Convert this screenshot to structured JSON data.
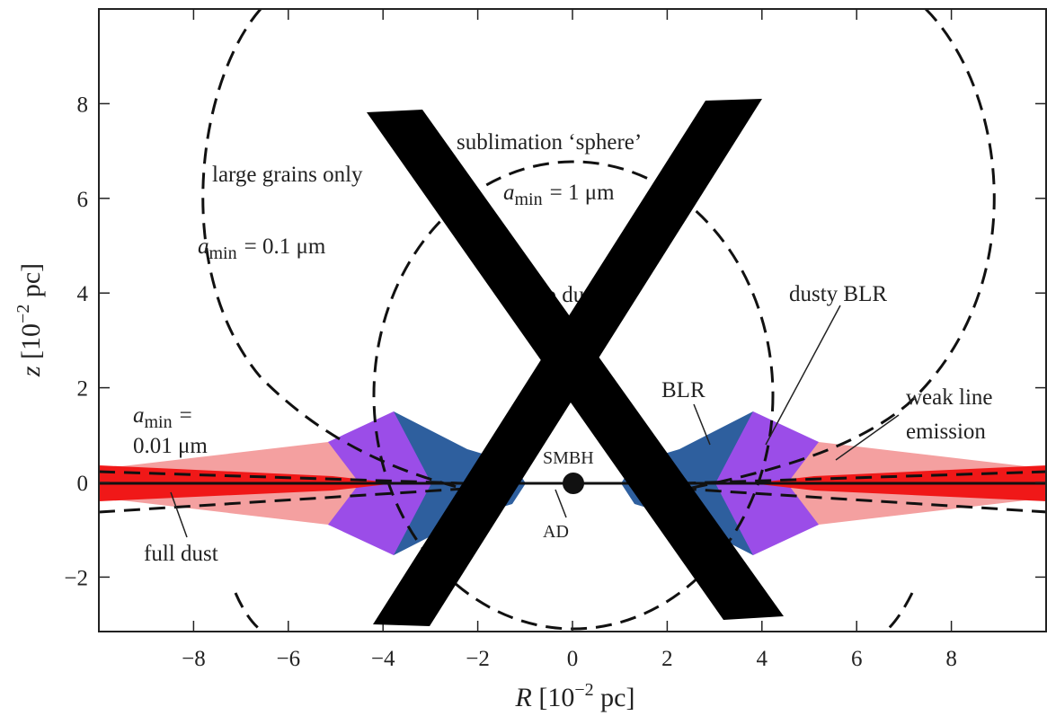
{
  "chart_data": {
    "type": "schematic",
    "xlabel": {
      "symbol": "R",
      "text": "[10",
      "superscript": "−2",
      "suffix": "pc]"
    },
    "ylabel": {
      "symbol": "z",
      "text": "[10",
      "superscript": "−2",
      "suffix": "pc]"
    },
    "xlim": [
      -10,
      10
    ],
    "ylim": [
      -3.15,
      10
    ],
    "xticks": [
      {
        "value": -8,
        "label": "−8"
      },
      {
        "value": -6,
        "label": "−6"
      },
      {
        "value": -4,
        "label": "−4"
      },
      {
        "value": -2,
        "label": "−2"
      },
      0,
      2,
      4,
      6,
      8
    ],
    "yticks": [
      {
        "value": -2,
        "label": "−2"
      },
      0,
      2,
      4,
      6,
      8
    ],
    "annotations": {
      "sublimation": "sublimation ‘sphere’",
      "large_grains": "large grains only",
      "amin_1": {
        "symbol": "a",
        "subscript": "min",
        "text": "= 1 μm"
      },
      "amin_01": {
        "symbol": "a",
        "subscript": "min",
        "text": "= 0.1 μm"
      },
      "no_dust": "no dust",
      "dusty_blr": "dusty BLR",
      "blr": "BLR",
      "weak_line_1": "weak line",
      "weak_line_2": "emission",
      "amin_001": {
        "symbol": "a",
        "subscript": "min",
        "text": "=",
        "line2": "0.01 μm"
      },
      "smbh": "SMBH",
      "ad": "AD",
      "full_dust": "full dust"
    }
  }
}
